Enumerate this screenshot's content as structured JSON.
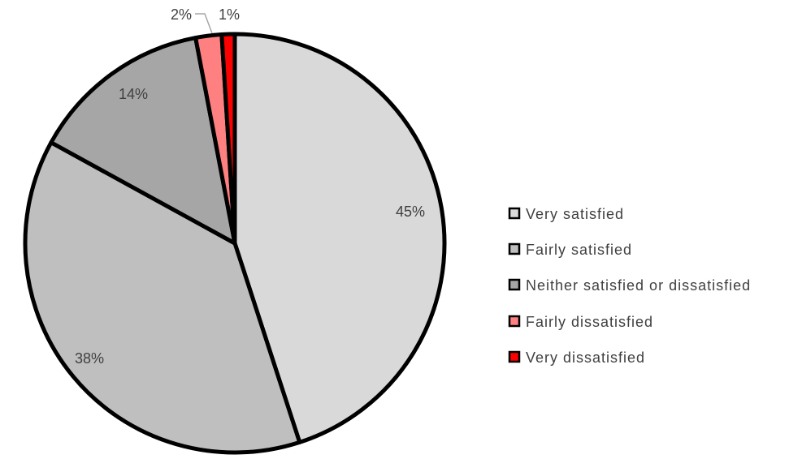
{
  "chart_data": {
    "type": "pie",
    "title": "",
    "categories": [
      "Very satisfied",
      "Fairly satisfied",
      "Neither satisfied or dissatisfied",
      "Fairly dissatisfied",
      "Very dissatisfied"
    ],
    "values": [
      45,
      38,
      14,
      2,
      1
    ],
    "data_labels": [
      "45%",
      "38%",
      "14%",
      "2%",
      "1%"
    ],
    "colors": [
      "#d9d9d9",
      "#bfbfbf",
      "#a6a6a6",
      "#ff8080",
      "#ff0000"
    ],
    "legend_position": "right"
  }
}
